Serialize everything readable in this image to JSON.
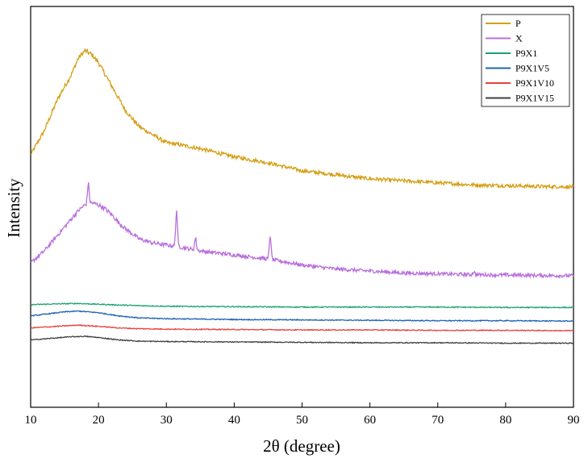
{
  "chart_data": {
    "type": "line",
    "xlabel": "2θ (degree)",
    "ylabel": "Intensity",
    "xlim": [
      10,
      90
    ],
    "x_ticks": [
      "10",
      "20",
      "30",
      "40",
      "50",
      "60",
      "70",
      "80",
      "90"
    ],
    "y_ticks_shown": false,
    "grid": false,
    "legend_position": "top-right",
    "series": [
      {
        "name": "P",
        "color": "#d4a017",
        "noise": 0.04,
        "points": [
          [
            10,
            0.63
          ],
          [
            12,
            0.69
          ],
          [
            14,
            0.77
          ],
          [
            16,
            0.83
          ],
          [
            17,
            0.87
          ],
          [
            18,
            0.89
          ],
          [
            19,
            0.88
          ],
          [
            20,
            0.86
          ],
          [
            21,
            0.83
          ],
          [
            22,
            0.8
          ],
          [
            24,
            0.74
          ],
          [
            26,
            0.7
          ],
          [
            28,
            0.68
          ],
          [
            30,
            0.66
          ],
          [
            32,
            0.655
          ],
          [
            35,
            0.645
          ],
          [
            40,
            0.625
          ],
          [
            45,
            0.61
          ],
          [
            50,
            0.59
          ],
          [
            55,
            0.58
          ],
          [
            60,
            0.57
          ],
          [
            65,
            0.565
          ],
          [
            70,
            0.56
          ],
          [
            75,
            0.555
          ],
          [
            80,
            0.553
          ],
          [
            85,
            0.551
          ],
          [
            90,
            0.55
          ]
        ]
      },
      {
        "name": "X",
        "color": "#b86fdc",
        "noise": 0.05,
        "peaks": [
          [
            18.5,
            0.05
          ],
          [
            31.5,
            0.09
          ],
          [
            34.3,
            0.03
          ],
          [
            45.3,
            0.06
          ],
          [
            75.3,
            0.008
          ]
        ],
        "points": [
          [
            10,
            0.36
          ],
          [
            12,
            0.39
          ],
          [
            14,
            0.43
          ],
          [
            16,
            0.47
          ],
          [
            17,
            0.49
          ],
          [
            18,
            0.505
          ],
          [
            19,
            0.51
          ],
          [
            20,
            0.505
          ],
          [
            21,
            0.495
          ],
          [
            22,
            0.48
          ],
          [
            23,
            0.46
          ],
          [
            24,
            0.445
          ],
          [
            26,
            0.42
          ],
          [
            28,
            0.41
          ],
          [
            30,
            0.405
          ],
          [
            32,
            0.4
          ],
          [
            35,
            0.39
          ],
          [
            40,
            0.38
          ],
          [
            45,
            0.37
          ],
          [
            50,
            0.355
          ],
          [
            55,
            0.345
          ],
          [
            60,
            0.34
          ],
          [
            65,
            0.335
          ],
          [
            70,
            0.333
          ],
          [
            75,
            0.331
          ],
          [
            80,
            0.33
          ],
          [
            85,
            0.329
          ],
          [
            90,
            0.328
          ]
        ]
      },
      {
        "name": "P9X1",
        "color": "#1aa36f",
        "noise": 0.015,
        "points": [
          [
            10,
            0.256
          ],
          [
            14,
            0.258
          ],
          [
            17,
            0.259
          ],
          [
            20,
            0.257
          ],
          [
            25,
            0.254
          ],
          [
            30,
            0.252
          ],
          [
            40,
            0.251
          ],
          [
            50,
            0.25
          ],
          [
            60,
            0.25
          ],
          [
            70,
            0.25
          ],
          [
            80,
            0.249
          ],
          [
            90,
            0.249
          ]
        ]
      },
      {
        "name": "P9X1V5",
        "color": "#1f63b4",
        "noise": 0.015,
        "points": [
          [
            10,
            0.228
          ],
          [
            12,
            0.232
          ],
          [
            15,
            0.238
          ],
          [
            17,
            0.24
          ],
          [
            20,
            0.236
          ],
          [
            23,
            0.228
          ],
          [
            26,
            0.223
          ],
          [
            30,
            0.221
          ],
          [
            40,
            0.219
          ],
          [
            50,
            0.218
          ],
          [
            60,
            0.217
          ],
          [
            70,
            0.216
          ],
          [
            80,
            0.216
          ],
          [
            90,
            0.215
          ]
        ]
      },
      {
        "name": "P9X1V10",
        "color": "#e8413f",
        "noise": 0.015,
        "points": [
          [
            10,
            0.198
          ],
          [
            14,
            0.202
          ],
          [
            17,
            0.205
          ],
          [
            20,
            0.202
          ],
          [
            23,
            0.198
          ],
          [
            26,
            0.196
          ],
          [
            30,
            0.195
          ],
          [
            40,
            0.194
          ],
          [
            50,
            0.193
          ],
          [
            60,
            0.193
          ],
          [
            70,
            0.192
          ],
          [
            80,
            0.192
          ],
          [
            90,
            0.191
          ]
        ]
      },
      {
        "name": "P9X1V15",
        "color": "#404040",
        "noise": 0.015,
        "points": [
          [
            10,
            0.168
          ],
          [
            13,
            0.172
          ],
          [
            16,
            0.176
          ],
          [
            18,
            0.177
          ],
          [
            20,
            0.174
          ],
          [
            23,
            0.168
          ],
          [
            26,
            0.165
          ],
          [
            30,
            0.164
          ],
          [
            40,
            0.163
          ],
          [
            50,
            0.162
          ],
          [
            60,
            0.161
          ],
          [
            70,
            0.161
          ],
          [
            80,
            0.16
          ],
          [
            90,
            0.16
          ]
        ]
      }
    ]
  }
}
